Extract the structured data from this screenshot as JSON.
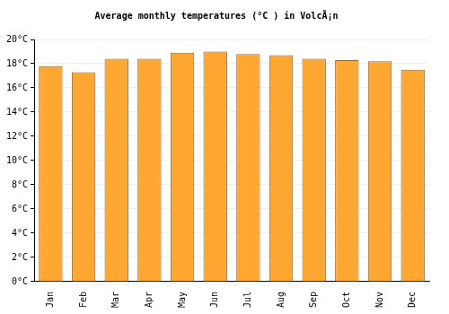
{
  "chart_data": {
    "type": "bar",
    "title": "Average monthly temperatures (°C ) in VolcÃ¡n",
    "categories": [
      "Jan",
      "Feb",
      "Mar",
      "Apr",
      "May",
      "Jun",
      "Jul",
      "Aug",
      "Sep",
      "Oct",
      "Nov",
      "Dec"
    ],
    "values": [
      17.8,
      17.3,
      18.4,
      18.4,
      18.9,
      19.0,
      18.8,
      18.7,
      18.4,
      18.3,
      18.2,
      17.5
    ],
    "color": "#ffa733",
    "ylim": [
      0,
      20
    ],
    "yticks": [
      {
        "value": 0,
        "label": "0°C"
      },
      {
        "value": 2,
        "label": "2°C"
      },
      {
        "value": 4,
        "label": "4°C"
      },
      {
        "value": 6,
        "label": "6°C"
      },
      {
        "value": 8,
        "label": "8°C"
      },
      {
        "value": 10,
        "label": "10°C"
      },
      {
        "value": 12,
        "label": "12°C"
      },
      {
        "value": 14,
        "label": "14°C"
      },
      {
        "value": 16,
        "label": "16°C"
      },
      {
        "value": 18,
        "label": "18°C"
      },
      {
        "value": 20,
        "label": "20°C"
      }
    ],
    "grid": true
  }
}
